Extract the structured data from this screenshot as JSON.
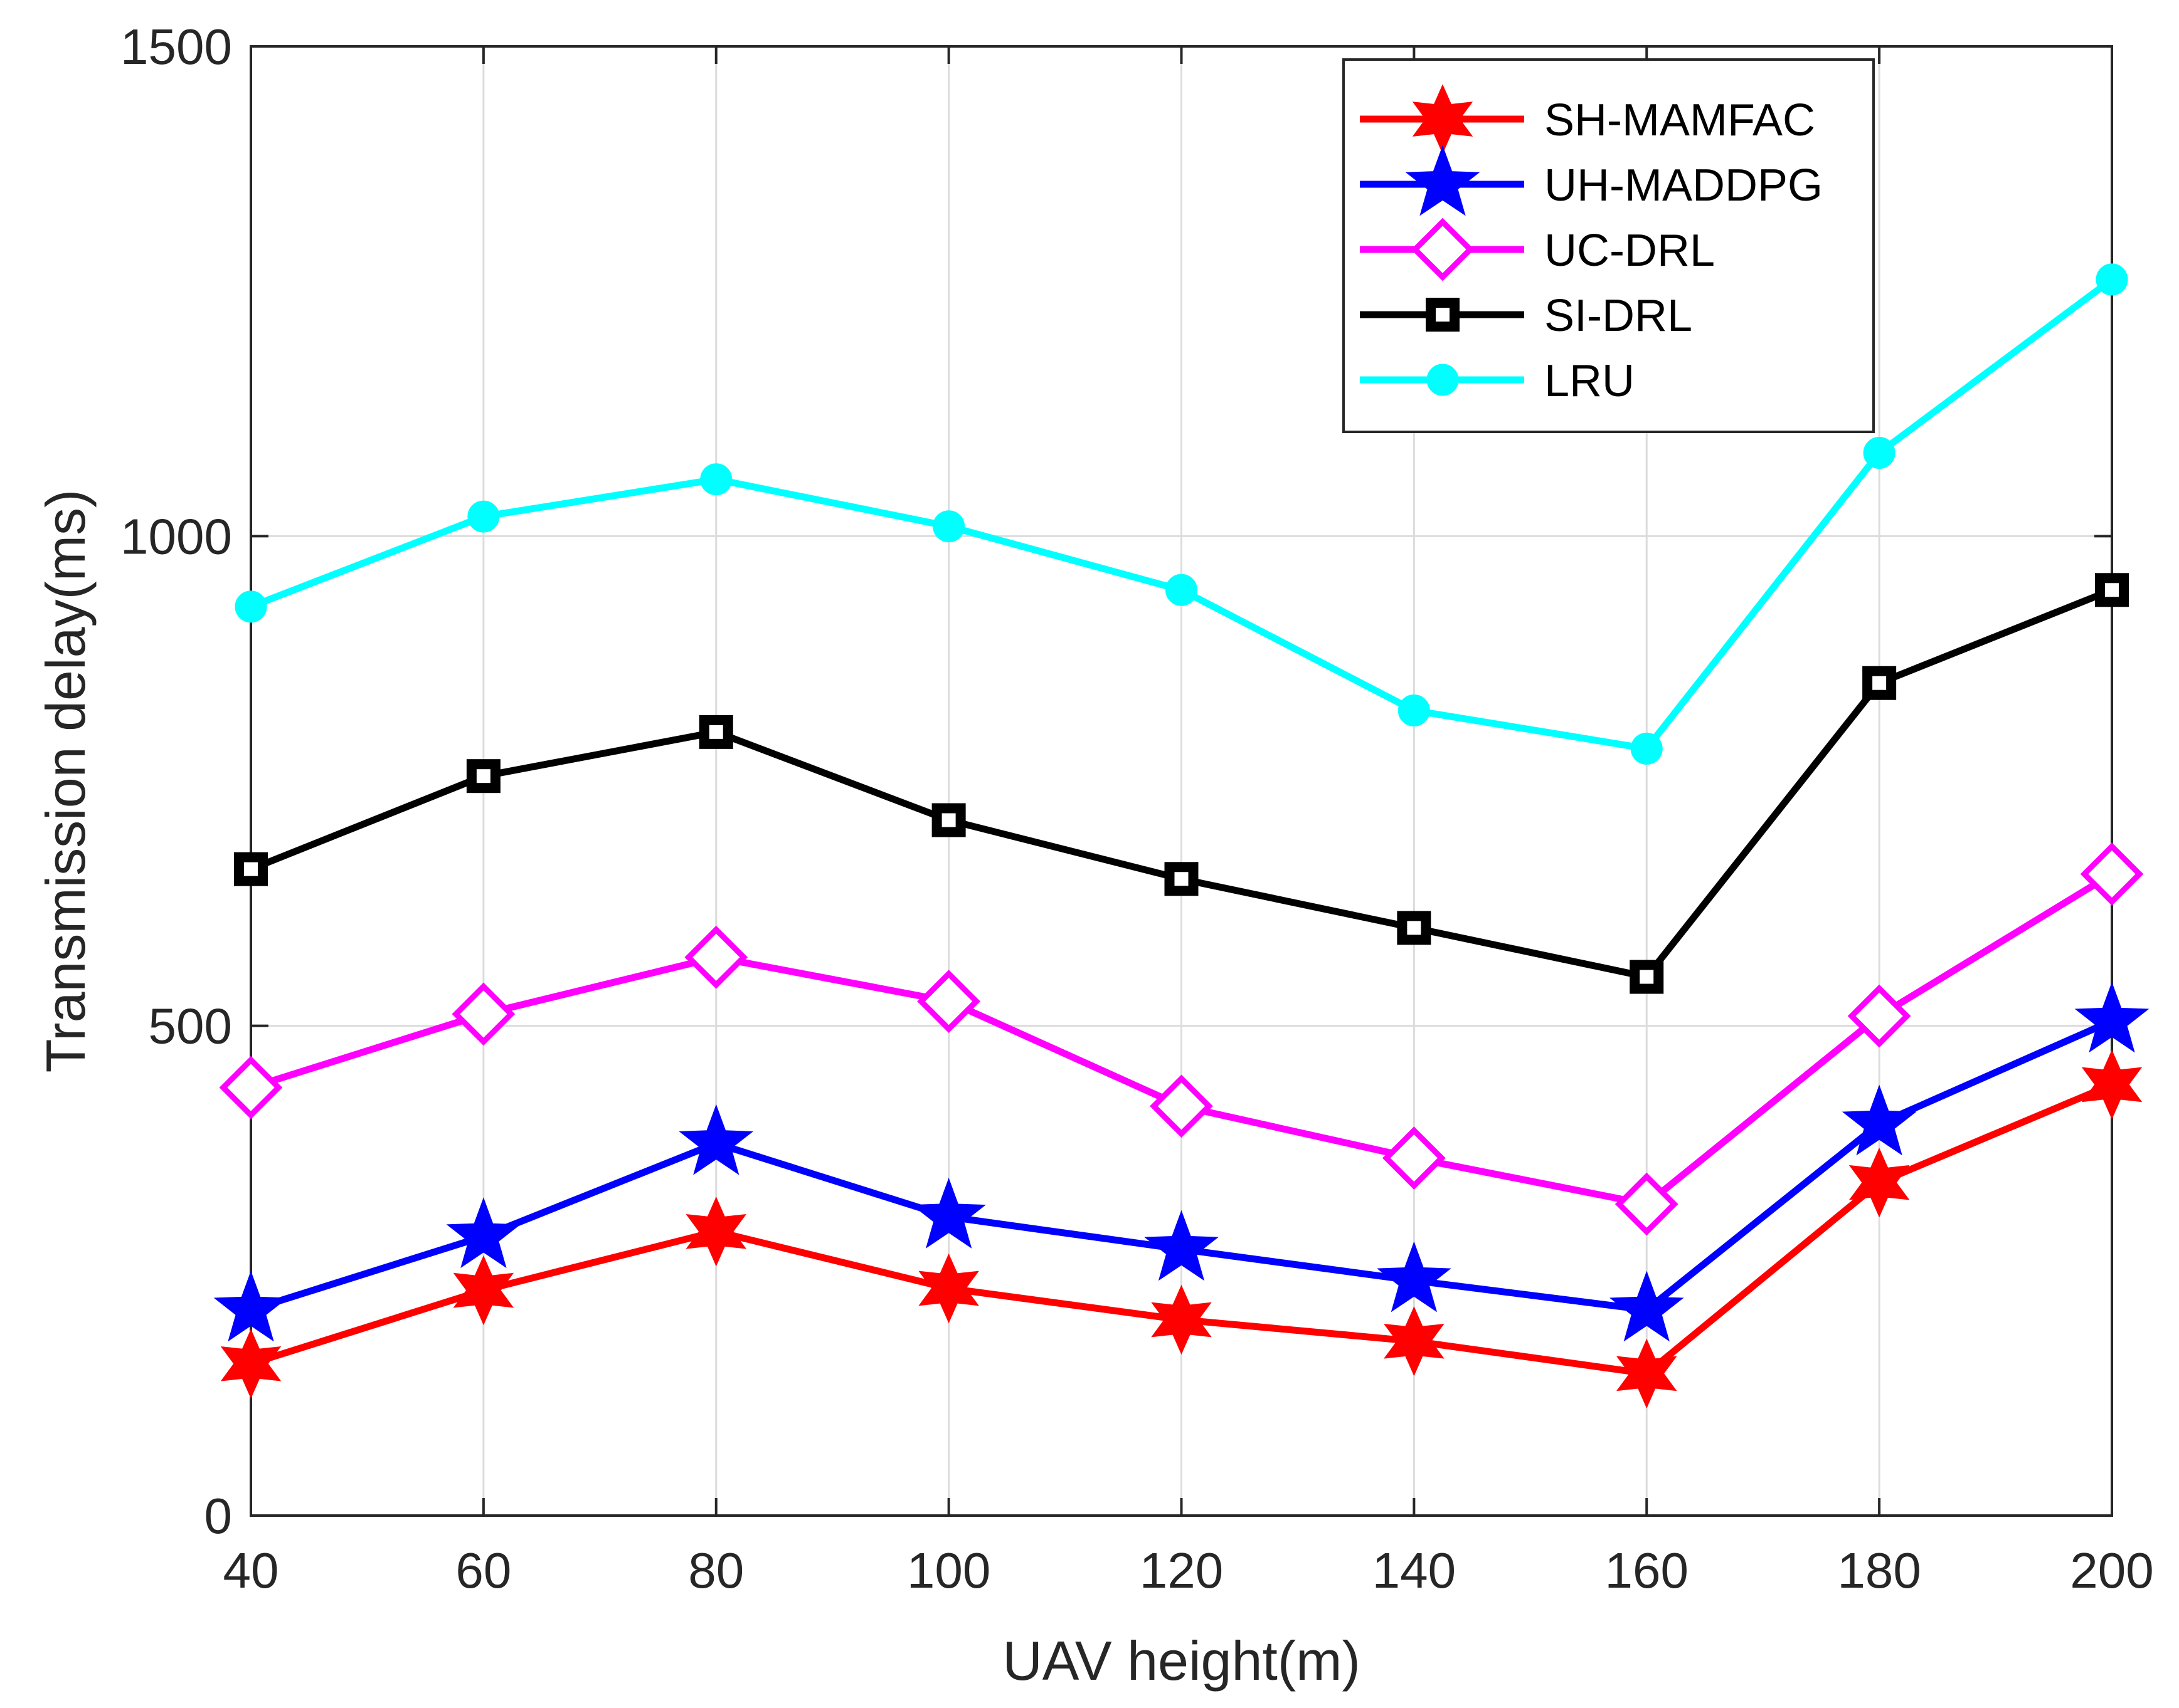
{
  "chart_data": {
    "type": "line",
    "title": "",
    "xlabel": "UAV height(m)",
    "ylabel": "Transmission delay(ms)",
    "x": [
      40,
      60,
      80,
      100,
      120,
      140,
      160,
      180,
      200
    ],
    "xlim": [
      40,
      200
    ],
    "ylim": [
      0,
      1500
    ],
    "xticks": [
      40,
      60,
      80,
      100,
      120,
      140,
      160,
      180,
      200
    ],
    "yticks": [
      0,
      500,
      1000,
      1500
    ],
    "grid": true,
    "legend_position": "top-right",
    "series": [
      {
        "name": "SH-MAMFAC",
        "color": "#ff0000",
        "marker": "star6",
        "values": [
          155,
          230,
          290,
          232,
          200,
          178,
          145,
          340,
          440
        ]
      },
      {
        "name": "UH-MADDPG",
        "color": "#0000ff",
        "marker": "star5",
        "values": [
          210,
          285,
          380,
          305,
          272,
          240,
          210,
          400,
          505
        ]
      },
      {
        "name": "UC-DRL",
        "color": "#ff00ff",
        "marker": "diamond",
        "values": [
          437,
          512,
          570,
          525,
          418,
          365,
          318,
          510,
          655
        ]
      },
      {
        "name": "SI-DRL",
        "color": "#000000",
        "marker": "square",
        "values": [
          660,
          755,
          800,
          710,
          650,
          600,
          550,
          850,
          945
        ]
      },
      {
        "name": "LRU",
        "color": "#00ffff",
        "marker": "circle",
        "values": [
          928,
          1020,
          1058,
          1010,
          945,
          822,
          783,
          1085,
          1262
        ]
      }
    ]
  }
}
